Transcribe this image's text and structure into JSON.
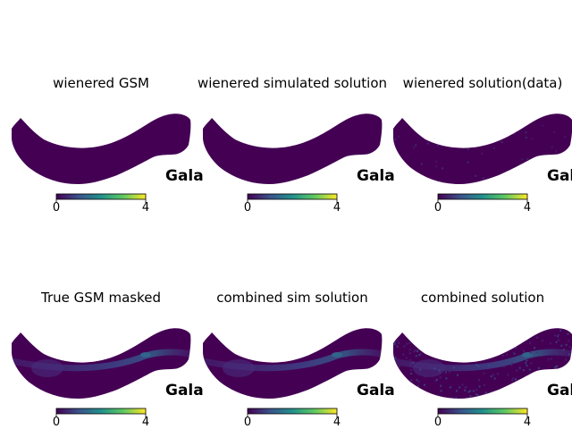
{
  "chart_data": [
    {
      "type": "heatmap",
      "title": "wienered GSM",
      "projection_label": "Gala",
      "colorbar": {
        "min": 0,
        "max": 4,
        "ticks": [
          "0",
          "4"
        ],
        "colormap": "viridis"
      },
      "texture": "flat"
    },
    {
      "type": "heatmap",
      "title": "wienered simulated solution",
      "projection_label": "Gala",
      "colorbar": {
        "min": 0,
        "max": 4,
        "ticks": [
          "0",
          "4"
        ],
        "colormap": "viridis"
      },
      "texture": "flat"
    },
    {
      "type": "heatmap",
      "title": "wienered solution(data)",
      "projection_label": "Gala",
      "colorbar": {
        "min": 0,
        "max": 4,
        "ticks": [
          "0",
          "4"
        ],
        "colormap": "viridis"
      },
      "texture": "faint-noise"
    },
    {
      "type": "heatmap",
      "title": "True GSM masked",
      "projection_label": "Gala",
      "colorbar": {
        "min": 0,
        "max": 4,
        "ticks": [
          "0",
          "4"
        ],
        "colormap": "viridis"
      },
      "texture": "galactic-band"
    },
    {
      "type": "heatmap",
      "title": "combined sim solution",
      "projection_label": "Gala",
      "colorbar": {
        "min": 0,
        "max": 4,
        "ticks": [
          "0",
          "4"
        ],
        "colormap": "viridis"
      },
      "texture": "galactic-band"
    },
    {
      "type": "heatmap",
      "title": "combined solution",
      "projection_label": "Gala",
      "colorbar": {
        "min": 0,
        "max": 4,
        "ticks": [
          "0",
          "4"
        ],
        "colormap": "viridis"
      },
      "texture": "noisy-band"
    }
  ],
  "colors": {
    "viridis_low": "#440154",
    "viridis_mid": "#21918c",
    "viridis_high": "#fde725",
    "band": "#3b5896"
  }
}
